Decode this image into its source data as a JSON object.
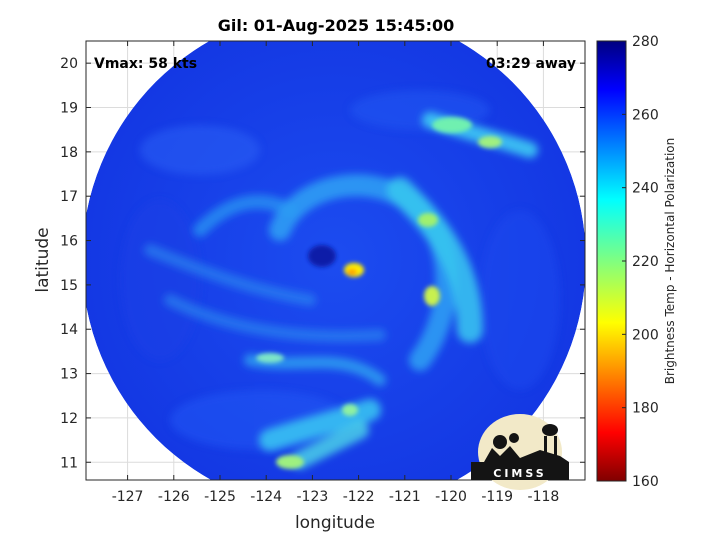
{
  "title": "Gil: 01-Aug-2025 15:45:00",
  "annotations": {
    "vmax": "Vmax: 58 kts",
    "time_away": "03:29 away"
  },
  "map": {
    "xlabel": "longitude",
    "ylabel": "latitude",
    "xlim": [
      -127.9,
      -117.1
    ],
    "ylim": [
      10.6,
      20.5
    ],
    "xticks": [
      -127,
      -126,
      -125,
      -124,
      -123,
      -122,
      -121,
      -120,
      -119,
      -118
    ],
    "yticks": [
      11,
      12,
      13,
      14,
      15,
      16,
      17,
      18,
      19,
      20
    ],
    "xtick_labels": [
      "-127",
      "-126",
      "-125",
      "-124",
      "-123",
      "-122",
      "-121",
      "-120",
      "-119",
      "-118"
    ],
    "ytick_labels": [
      "11",
      "12",
      "13",
      "14",
      "15",
      "16",
      "17",
      "18",
      "19",
      "20"
    ],
    "grid": true,
    "storm_center": {
      "lon": -122.4,
      "lat": 15.4
    }
  },
  "colorbar": {
    "label": "Brightness Temp - Horizontal Polarization",
    "range": [
      160,
      280
    ],
    "ticks": [
      "280",
      "260",
      "240",
      "220",
      "200",
      "180",
      "160"
    ],
    "colormap": "jet"
  },
  "logo": {
    "text": "CIMSS"
  }
}
